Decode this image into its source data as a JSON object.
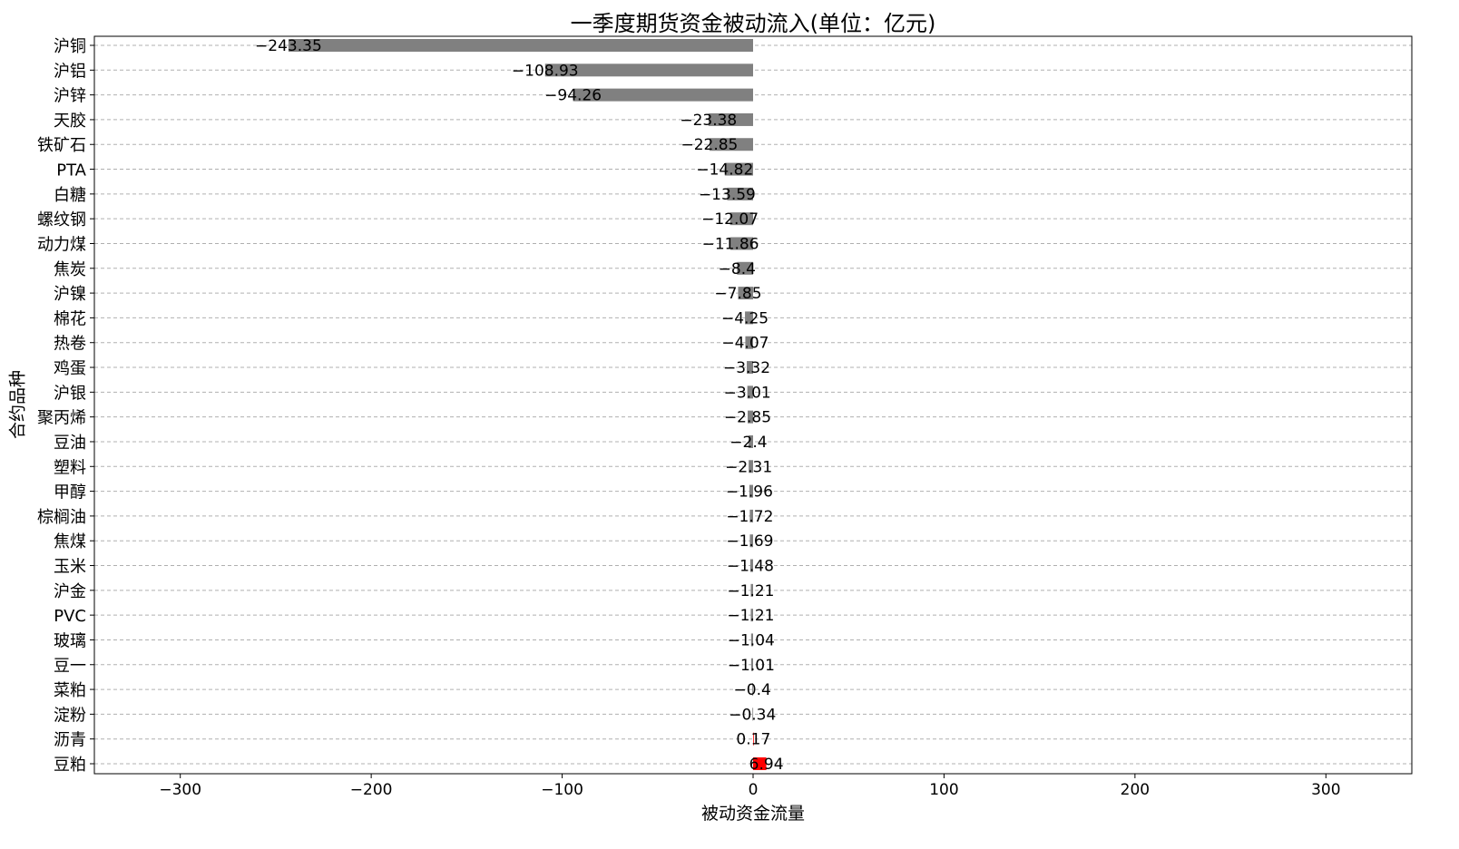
{
  "chart_data": {
    "type": "bar",
    "orientation": "horizontal",
    "title": "一季度期货资金被动流入(单位：亿元)",
    "xlabel": "被动资金流量",
    "ylabel": "合约品种",
    "xlim": [
      -345,
      345
    ],
    "xticks": [
      -300,
      -200,
      -100,
      0,
      100,
      200,
      300
    ],
    "xtick_labels": [
      "−300",
      "−200",
      "−100",
      "0",
      "100",
      "200",
      "300"
    ],
    "grid": "horizontal dashed",
    "colors": {
      "negative": "#808080",
      "positive": "#ff0000",
      "grid": "#b0b0b0"
    },
    "categories": [
      "沪铜",
      "沪铝",
      "沪锌",
      "天胶",
      "铁矿石",
      "PTA",
      "白糖",
      "螺纹钢",
      "动力煤",
      "焦炭",
      "沪镍",
      "棉花",
      "热卷",
      "鸡蛋",
      "沪银",
      "聚丙烯",
      "豆油",
      "塑料",
      "甲醇",
      "棕榈油",
      "焦煤",
      "玉米",
      "沪金",
      "PVC",
      "玻璃",
      "豆一",
      "菜粕",
      "淀粉",
      "沥青",
      "豆粕"
    ],
    "values": [
      -243.35,
      -108.93,
      -94.26,
      -23.38,
      -22.85,
      -14.82,
      -13.59,
      -12.07,
      -11.86,
      -8.4,
      -7.85,
      -4.25,
      -4.07,
      -3.32,
      -3.01,
      -2.85,
      -2.4,
      -2.31,
      -1.96,
      -1.72,
      -1.69,
      -1.48,
      -1.21,
      -1.21,
      -1.04,
      -1.01,
      -0.4,
      -0.34,
      0.17,
      6.94
    ],
    "value_labels": [
      "−243.35",
      "−108.93",
      "−94.26",
      "−23.38",
      "−22.85",
      "−14.82",
      "−13.59",
      "−12.07",
      "−11.86",
      "−8.4",
      "−7.85",
      "−4.25",
      "−4.07",
      "−3.32",
      "−3.01",
      "−2.85",
      "−2.4",
      "−2.31",
      "−1.96",
      "−1.72",
      "−1.69",
      "−1.48",
      "−1.21",
      "−1.21",
      "−1.04",
      "−1.01",
      "−0.4",
      "−0.34",
      "0.17",
      "6.94"
    ]
  }
}
